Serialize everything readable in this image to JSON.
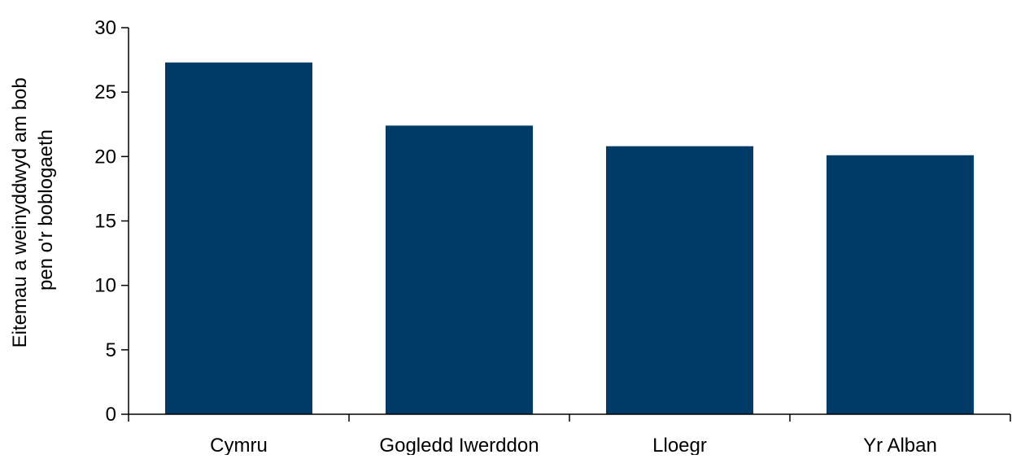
{
  "chart_data": {
    "type": "bar",
    "title": "",
    "xlabel": "",
    "ylabel_lines": [
      "Eitemau a weinyddwyd am bob",
      "pen o'r boblogaeth"
    ],
    "categories": [
      "Cymru",
      "Gogledd Iwerddon",
      "Lloegr",
      "Yr Alban"
    ],
    "values": [
      27.3,
      22.4,
      20.8,
      20.1
    ],
    "ylim": [
      0,
      30
    ],
    "yticks": [
      "0",
      "5",
      "10",
      "15",
      "20",
      "25",
      "30"
    ],
    "grid": false,
    "legend": "none",
    "bar_color": "#003B68"
  }
}
